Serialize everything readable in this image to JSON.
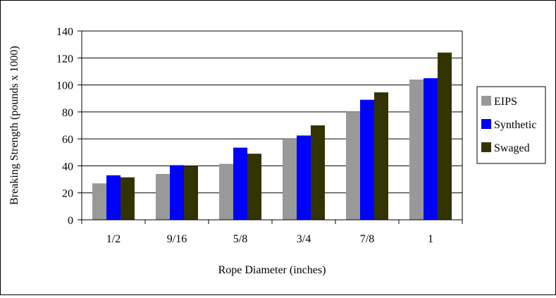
{
  "chart_data": {
    "type": "bar",
    "title": "",
    "xlabel": "Rope Diameter (inches)",
    "ylabel": "Breaking Strength (pounds x 1000)",
    "categories": [
      "1/2",
      "9/16",
      "5/8",
      "3/4",
      "7/8",
      "1"
    ],
    "ylim": [
      0,
      140
    ],
    "yticks": [
      0,
      20,
      40,
      60,
      80,
      100,
      120,
      140
    ],
    "grid": true,
    "legend_position": "right",
    "series": [
      {
        "name": "EIPS",
        "color": "#999999",
        "values": [
          27,
          34,
          41.5,
          60,
          80,
          104
        ]
      },
      {
        "name": "Synthetic",
        "color": "#0000ff",
        "values": [
          33,
          40.5,
          53.5,
          62.5,
          89,
          105
        ]
      },
      {
        "name": "Swaged",
        "color": "#333300",
        "values": [
          31.5,
          40,
          49,
          70,
          94.5,
          124
        ]
      }
    ]
  }
}
